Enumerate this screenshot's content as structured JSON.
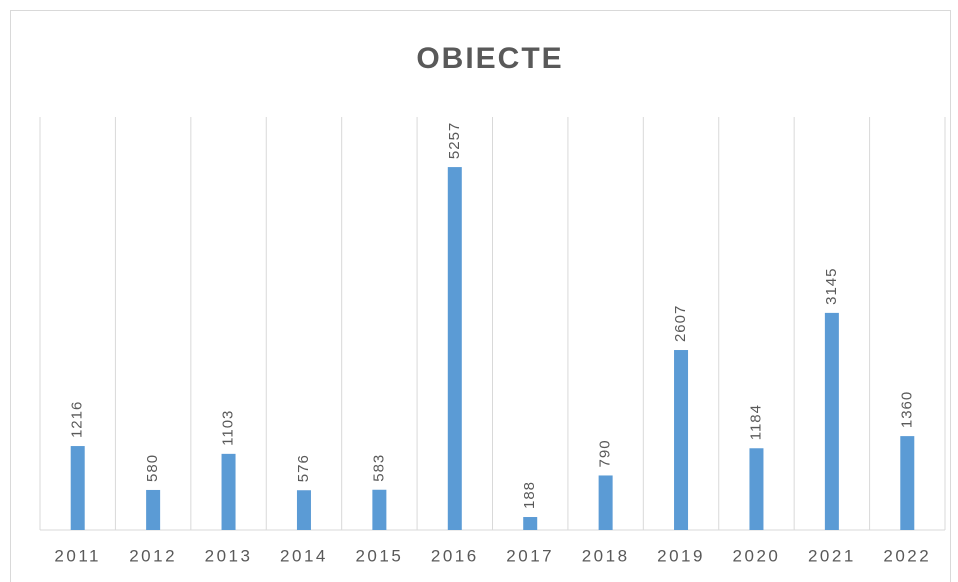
{
  "chart_data": {
    "type": "bar",
    "title": "OBIECTE",
    "categories": [
      "2011",
      "2012",
      "2013",
      "2014",
      "2015",
      "2016",
      "2017",
      "2018",
      "2019",
      "2020",
      "2021",
      "2022"
    ],
    "values": [
      1216,
      580,
      1103,
      576,
      583,
      5257,
      188,
      790,
      2607,
      1184,
      3145,
      1360
    ],
    "color": "#5b9bd5",
    "grid": true
  }
}
